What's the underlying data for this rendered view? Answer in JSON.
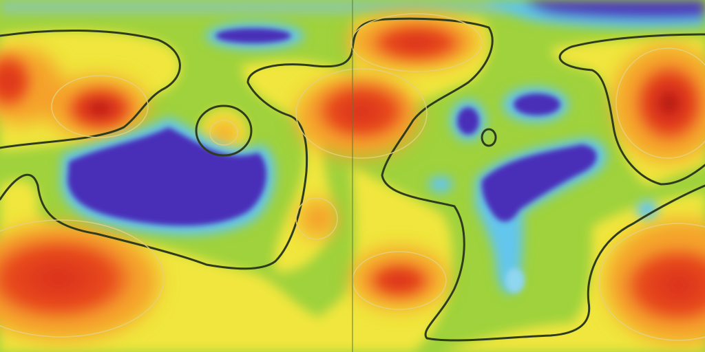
{
  "map": {
    "kind": "global scalar field anomaly map (equirectangular, two hemispheres)",
    "colors": {
      "background_green": "#9fd23c",
      "yellow": "#f2e53a",
      "orange": "#f59a2a",
      "red": "#e0321c",
      "dark_red": "#a80f0e",
      "blue_core": "#4a2fb8",
      "cyan_rim": "#62c8ec",
      "light_green_rim": "#c9e86a",
      "contour_zero": "#2e3b1d",
      "contour_pos": "#e3d07e",
      "center_divider": "#5a7a3a"
    },
    "features": [
      {
        "name": "anomaly-red-west-upper",
        "level": "high"
      },
      {
        "name": "anomaly-red-west-lower",
        "level": "high"
      },
      {
        "name": "anomaly-red-north-center",
        "level": "high"
      },
      {
        "name": "anomaly-red-center",
        "level": "high"
      },
      {
        "name": "anomaly-red-east-upper",
        "level": "very-high"
      },
      {
        "name": "anomaly-red-east-lower",
        "level": "high"
      },
      {
        "name": "anomaly-blue-west-large",
        "level": "very-low"
      },
      {
        "name": "anomaly-blue-east-large",
        "level": "very-low"
      },
      {
        "name": "anomaly-blue-north-small",
        "level": "very-low"
      },
      {
        "name": "anomaly-blue-top-right",
        "level": "low"
      }
    ]
  }
}
